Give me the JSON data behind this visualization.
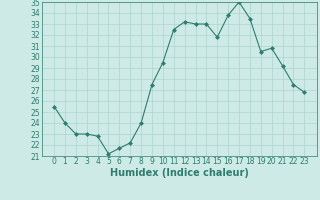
{
  "title": "",
  "xlabel": "Humidex (Indice chaleur)",
  "ylabel": "",
  "x": [
    0,
    1,
    2,
    3,
    4,
    5,
    6,
    7,
    8,
    9,
    10,
    11,
    12,
    13,
    14,
    15,
    16,
    17,
    18,
    19,
    20,
    21,
    22,
    23
  ],
  "y": [
    25.5,
    24.0,
    23.0,
    23.0,
    22.8,
    21.2,
    21.7,
    22.2,
    24.0,
    27.5,
    29.5,
    32.5,
    33.2,
    33.0,
    33.0,
    31.8,
    33.8,
    35.0,
    33.5,
    30.5,
    30.8,
    29.2,
    27.5,
    26.8
  ],
  "line_color": "#2e7d6e",
  "marker": "D",
  "marker_size": 2.0,
  "bg_color": "#ceeae6",
  "grid_color": "#aed4cf",
  "ylim": [
    21,
    35
  ],
  "yticks": [
    21,
    22,
    23,
    24,
    25,
    26,
    27,
    28,
    29,
    30,
    31,
    32,
    33,
    34,
    35
  ],
  "xticks": [
    0,
    1,
    2,
    3,
    4,
    5,
    6,
    7,
    8,
    9,
    10,
    11,
    12,
    13,
    14,
    15,
    16,
    17,
    18,
    19,
    20,
    21,
    22,
    23
  ],
  "tick_color": "#2e7d6e",
  "xlabel_fontsize": 7,
  "tick_fontsize": 5.5
}
